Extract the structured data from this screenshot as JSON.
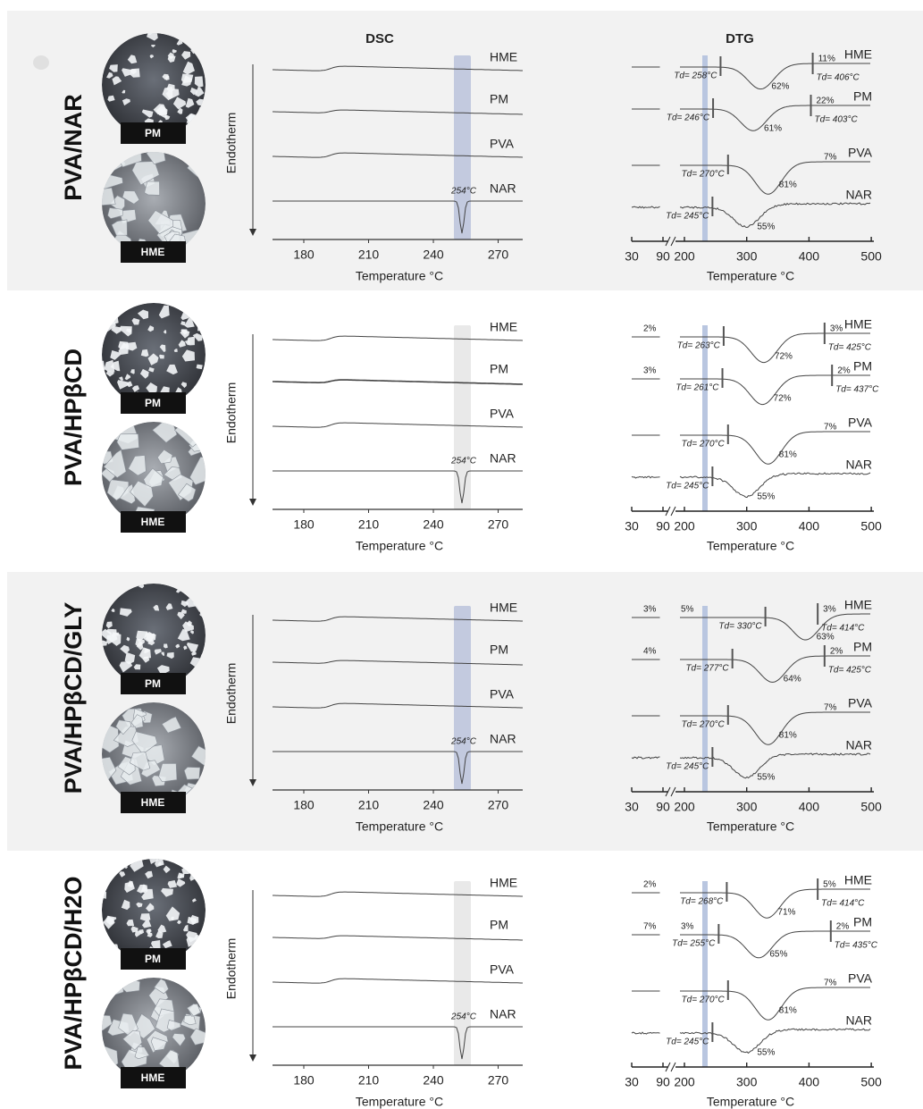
{
  "headers": {
    "dsc": "DSC",
    "dtg": "DTG"
  },
  "panels": [
    {
      "label": "PVA/NAR",
      "photos": [
        "PM",
        "HME"
      ],
      "dsc": {
        "axis_label": "Endotherm",
        "x_label": "Temperature °C",
        "ticks": [
          "180",
          "210",
          "240",
          "270"
        ],
        "curves": [
          "HME",
          "PM",
          "PVA",
          "NAR"
        ],
        "peak": "254°C"
      },
      "dtg": {
        "x_label": "Temperature °C",
        "ticks": [
          "30",
          "90",
          "200",
          "300",
          "400",
          "500"
        ],
        "curves": [
          {
            "name": "HME",
            "onset": "Td= 258°C",
            "loss": "62%",
            "residue": "11%",
            "end": "Td= 406°C"
          },
          {
            "name": "PM",
            "onset": "Td= 246°C",
            "loss": "61%",
            "residue": "22%",
            "end": "Td= 403°C"
          },
          {
            "name": "PVA",
            "onset": "Td= 270°C",
            "loss": "81%",
            "residue": "7%"
          },
          {
            "name": "NAR",
            "onset": "Td= 245°C",
            "loss": "55%"
          }
        ]
      }
    },
    {
      "label": "PVA/HPβCD",
      "photos": [
        "PM",
        "HME"
      ],
      "dsc": {
        "axis_label": "Endotherm",
        "x_label": "Temperature °C",
        "ticks": [
          "180",
          "210",
          "240",
          "270"
        ],
        "curves": [
          "HME",
          "PM",
          "PVA",
          "NAR"
        ],
        "peak": "254°C"
      },
      "dtg": {
        "x_label": "Temperature °C",
        "ticks": [
          "30",
          "90",
          "200",
          "300",
          "400",
          "500"
        ],
        "curves": [
          {
            "name": "HME",
            "pre": "2%",
            "onset": "Td= 263°C",
            "loss": "72%",
            "residue": "3%",
            "end": "Td= 425°C"
          },
          {
            "name": "PM",
            "pre": "3%",
            "onset": "Td= 261°C",
            "loss": "72%",
            "residue": "2%",
            "end": "Td= 437°C"
          },
          {
            "name": "PVA",
            "onset": "Td= 270°C",
            "loss": "81%",
            "residue": "7%"
          },
          {
            "name": "NAR",
            "onset": "Td= 245°C",
            "loss": "55%"
          }
        ]
      }
    },
    {
      "label": "PVA/HPβCD/GLY",
      "photos": [
        "PM",
        "HME"
      ],
      "dsc": {
        "axis_label": "Endotherm",
        "x_label": "Temperature °C",
        "ticks": [
          "180",
          "210",
          "240",
          "270"
        ],
        "curves": [
          "HME",
          "PM",
          "PVA",
          "NAR"
        ],
        "peak": "254°C"
      },
      "dtg": {
        "x_label": "Temperature °C",
        "ticks": [
          "30",
          "90",
          "200",
          "300",
          "400",
          "500"
        ],
        "curves": [
          {
            "name": "HME",
            "pre": "3%",
            "pre2": "5%",
            "onset": "Td= 330°C",
            "loss": "63%",
            "residue": "3%",
            "end": "Td= 414°C"
          },
          {
            "name": "PM",
            "pre": "4%",
            "onset": "Td= 277°C",
            "loss": "64%",
            "residue": "2%",
            "end": "Td= 425°C"
          },
          {
            "name": "PVA",
            "onset": "Td= 270°C",
            "loss": "81%",
            "residue": "7%"
          },
          {
            "name": "NAR",
            "onset": "Td= 245°C",
            "loss": "55%"
          }
        ]
      }
    },
    {
      "label": "PVA/HPβCD/H2O",
      "photos": [
        "PM",
        "HME"
      ],
      "dsc": {
        "axis_label": "Endotherm",
        "x_label": "Temperature °C",
        "ticks": [
          "180",
          "210",
          "240",
          "270"
        ],
        "curves": [
          "HME",
          "PM",
          "PVA",
          "NAR"
        ],
        "peak": "254°C"
      },
      "dtg": {
        "x_label": "Temperature °C",
        "ticks": [
          "30",
          "90",
          "200",
          "300",
          "400",
          "500"
        ],
        "curves": [
          {
            "name": "HME",
            "pre": "2%",
            "onset": "Td= 268°C",
            "loss": "71%",
            "residue": "5%",
            "end": "Td= 414°C"
          },
          {
            "name": "PM",
            "pre": "7%",
            "pre2": "3%",
            "onset": "Td= 255°C",
            "loss": "65%",
            "residue": "2%",
            "end": "Td= 435°C"
          },
          {
            "name": "PVA",
            "onset": "Td= 270°C",
            "loss": "81%",
            "residue": "7%"
          },
          {
            "name": "NAR",
            "onset": "Td= 245°C",
            "loss": "55%"
          }
        ]
      }
    }
  ]
}
